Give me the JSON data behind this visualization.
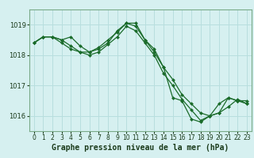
{
  "bg_color": "#d6f0f0",
  "grid_color": "#b8dede",
  "line_color": "#1a6b2a",
  "marker_color": "#1a6b2a",
  "xlabel": "Graphe pression niveau de la mer (hPa)",
  "xlabel_fontsize": 7,
  "ylabel_ticks": [
    1016,
    1017,
    1018,
    1019
  ],
  "xlim": [
    -0.5,
    23.5
  ],
  "ylim": [
    1015.5,
    1019.5
  ],
  "xticks": [
    0,
    1,
    2,
    3,
    4,
    5,
    6,
    7,
    8,
    9,
    10,
    11,
    12,
    13,
    14,
    15,
    16,
    17,
    18,
    19,
    20,
    21,
    22,
    23
  ],
  "series": [
    [
      1018.4,
      1018.6,
      1018.6,
      1018.5,
      1018.6,
      1018.3,
      1018.1,
      1018.2,
      1018.4,
      1018.8,
      1019.05,
      1019.05,
      1018.5,
      1018.1,
      1017.6,
      1016.6,
      1016.5,
      1015.9,
      1015.8,
      1016.0,
      1016.4,
      1016.6,
      1016.5,
      1016.5
    ],
    [
      1018.4,
      1018.6,
      1018.6,
      1018.5,
      1018.3,
      1018.1,
      1018.1,
      1018.25,
      1018.5,
      1018.75,
      1019.05,
      1018.95,
      1018.5,
      1018.2,
      1017.6,
      1017.2,
      1016.7,
      1016.4,
      1016.1,
      1016.0,
      1016.1,
      1016.6,
      1016.5,
      1016.4
    ],
    [
      1018.4,
      1018.6,
      1018.6,
      1018.4,
      1018.2,
      1018.1,
      1018.0,
      1018.1,
      1018.35,
      1018.6,
      1018.95,
      1018.8,
      1018.4,
      1018.0,
      1017.4,
      1017.0,
      1016.55,
      1016.2,
      1015.85,
      1016.0,
      1016.1,
      1016.3,
      1016.55,
      1016.4
    ]
  ]
}
